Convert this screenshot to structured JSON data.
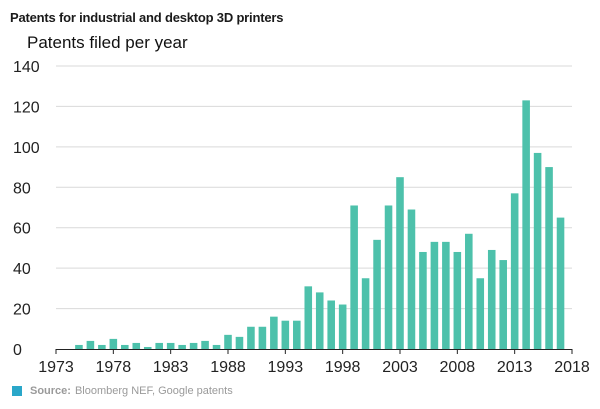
{
  "chart_data": {
    "type": "bar",
    "title": "Patents for industrial and desktop 3D printers",
    "ylabel": "Patents filed per year",
    "xlabel": "",
    "ylim": [
      0,
      140
    ],
    "xlim": [
      1973,
      2018
    ],
    "y_ticks": [
      0,
      20,
      40,
      60,
      80,
      100,
      120,
      140
    ],
    "x_ticks": [
      1973,
      1978,
      1983,
      1988,
      1993,
      1998,
      2003,
      2008,
      2013,
      2018
    ],
    "grid": "horizontal",
    "categories": [
      1975,
      1976,
      1977,
      1978,
      1979,
      1980,
      1981,
      1982,
      1983,
      1984,
      1985,
      1986,
      1987,
      1988,
      1989,
      1990,
      1991,
      1992,
      1993,
      1994,
      1995,
      1996,
      1997,
      1998,
      1999,
      2000,
      2001,
      2002,
      2003,
      2004,
      2005,
      2006,
      2007,
      2008,
      2009,
      2010,
      2011,
      2012,
      2013,
      2014,
      2015,
      2016,
      2017
    ],
    "values": [
      2,
      4,
      2,
      5,
      2,
      3,
      1,
      3,
      3,
      2,
      3,
      4,
      2,
      7,
      6,
      11,
      11,
      16,
      14,
      14,
      31,
      28,
      24,
      22,
      71,
      35,
      54,
      71,
      85,
      69,
      48,
      53,
      53,
      48,
      57,
      35,
      49,
      44,
      77,
      123,
      97,
      90,
      65
    ],
    "bar_color": "#4dc1ab"
  },
  "source": {
    "label": "Source:",
    "text": "Bloomberg NEF, Google patents",
    "swatch_color": "#2aa7c9"
  }
}
